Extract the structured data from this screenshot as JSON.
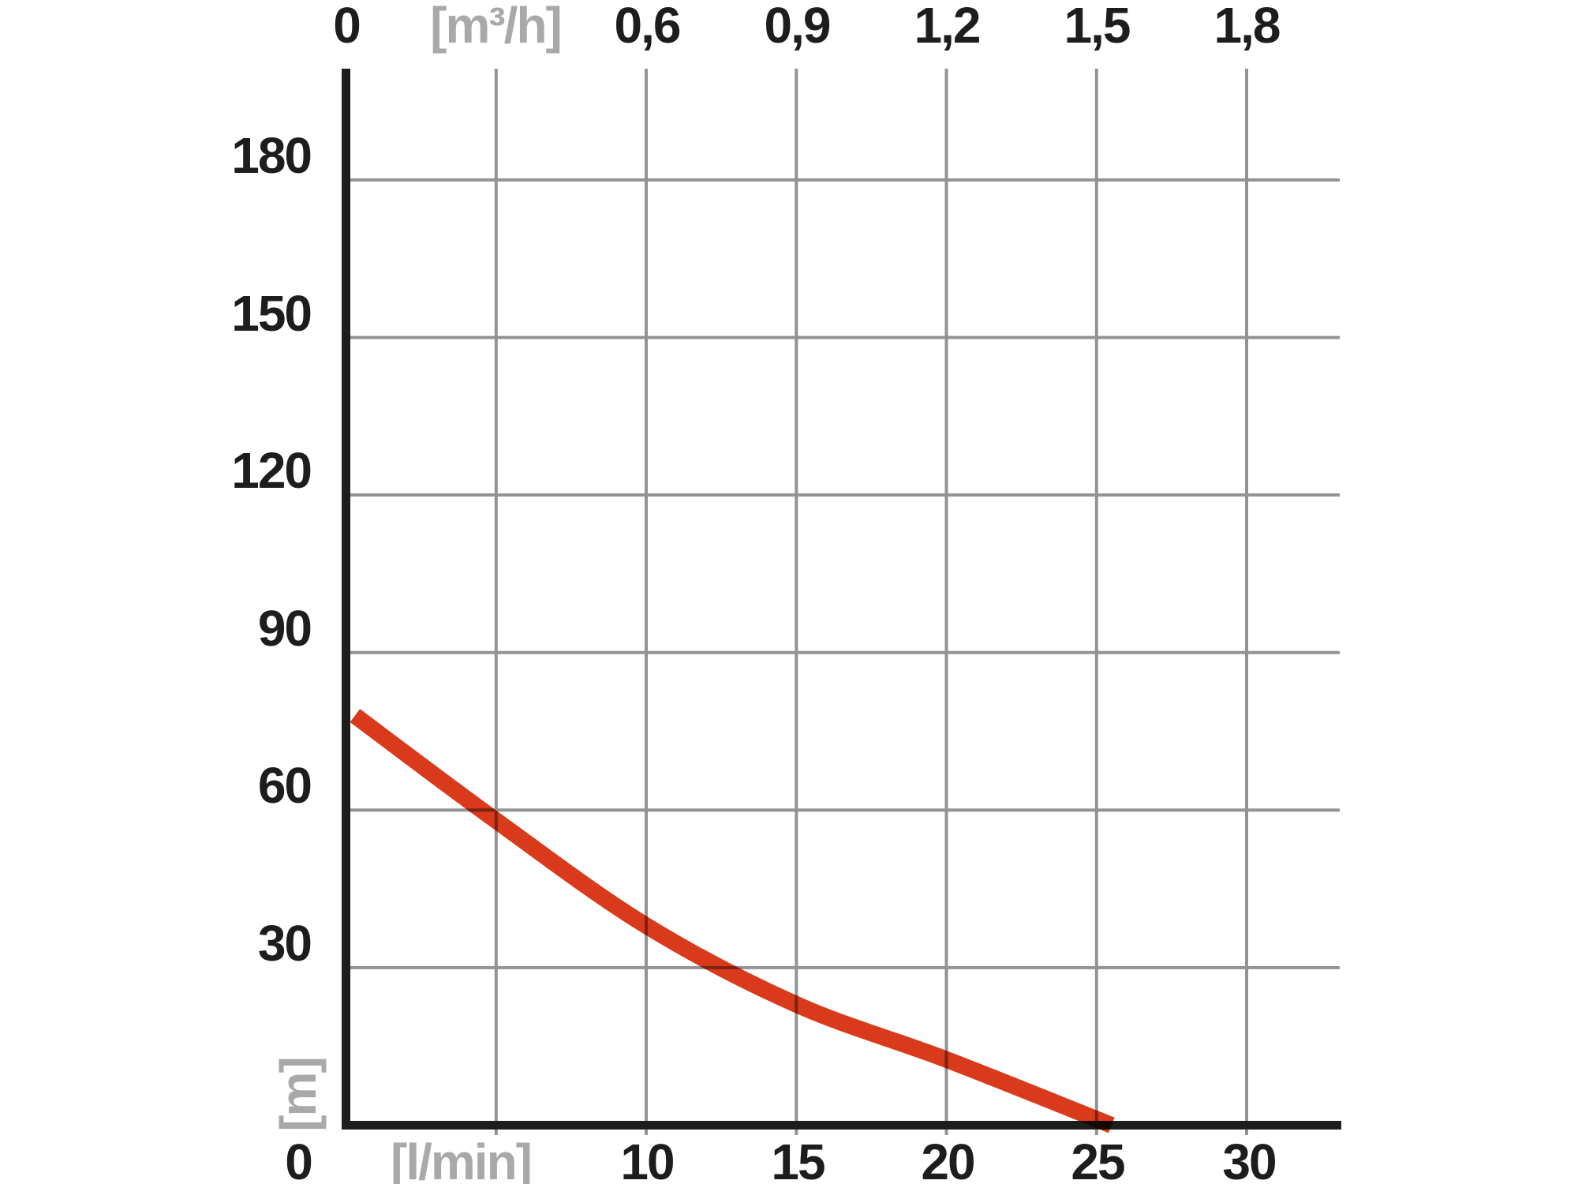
{
  "colors": {
    "curve": "#d93a1b",
    "grid": "#939393",
    "axis": "#1d1d1b",
    "text": "#1d1d1b",
    "muted_text": "#a9a9a9"
  },
  "labels": {
    "top": [
      "0",
      "[m³/h]",
      "0,6",
      "0,9",
      "1,2",
      "1,5",
      "1,8"
    ],
    "bottom": [
      "0",
      "[l/min]",
      "10",
      "15",
      "20",
      "25",
      "30"
    ],
    "left": [
      "180",
      "150",
      "120",
      "90",
      "60",
      "30"
    ],
    "left_unit": "[m]"
  },
  "chart_data": {
    "type": "line",
    "title": "",
    "x_axis_bottom": {
      "unit_label": "[l/min]",
      "tick_labels": [
        "0",
        "10",
        "15",
        "20",
        "25",
        "30"
      ],
      "tick_values": [
        0,
        10,
        15,
        20,
        25,
        30
      ],
      "gridline_step_lmin": 5,
      "min": 0,
      "max": 33
    },
    "x_axis_top": {
      "unit_label": "[m³/h]",
      "tick_labels": [
        "0",
        "0,6",
        "0,9",
        "1,2",
        "1,5",
        "1,8"
      ],
      "tick_values": [
        0,
        0.6,
        0.9,
        1.2,
        1.5,
        1.8
      ],
      "conversion": "0,3 m³/h per 5 l/min (shared gridlines)"
    },
    "y_axis": {
      "unit_label": "[m]",
      "tick_labels": [
        "180",
        "150",
        "120",
        "90",
        "60",
        "30",
        "0"
      ],
      "tick_values": [
        180,
        150,
        120,
        90,
        60,
        30,
        0
      ],
      "gridline_step_m": 30,
      "min": 0,
      "max": 201
    },
    "grid": true,
    "legend": false,
    "series": [
      {
        "name": "pump-head-vs-flow",
        "color": "#d93a1b",
        "points": [
          {
            "flow_lmin": 0.3,
            "head_m": 78
          },
          {
            "flow_lmin": 5,
            "head_m": 58
          },
          {
            "flow_lmin": 10,
            "head_m": 38
          },
          {
            "flow_lmin": 15,
            "head_m": 23
          },
          {
            "flow_lmin": 20,
            "head_m": 12.5
          },
          {
            "flow_lmin": 25.5,
            "head_m": 0
          }
        ]
      }
    ]
  }
}
